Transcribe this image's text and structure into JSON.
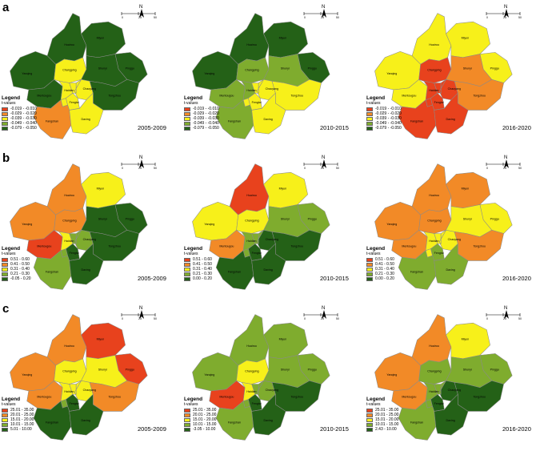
{
  "rows": [
    {
      "letter": "a",
      "legend_title": "Legend",
      "legend_subtitle": "t-values",
      "legend_items": [
        {
          "label": "-0.019 - -0.010",
          "color": "#e8421d"
        },
        {
          "label": "-0.029 - -0.020",
          "color": "#f28a27"
        },
        {
          "label": "-0.039 - -0.030",
          "color": "#f7f01a"
        },
        {
          "label": "-0.049 - -0.040",
          "color": "#7fac2e"
        },
        {
          "label": "-0.079 - -0.050",
          "color": "#246117"
        }
      ],
      "panels": [
        {
          "period": "2005-2009",
          "colors": {
            "Miyun": "#246117",
            "Yanqing": "#246117",
            "Huairou": "#246117",
            "Pinggu": "#246117",
            "Changping": "#f7f01a",
            "Shunyi": "#246117",
            "Tongzhou": "#246117",
            "Haidian": "#f7f01a",
            "Chaoyang": "#f7f01a",
            "Dongcheng": "#f7f01a",
            "Xicheng": "#f7f01a",
            "Shijingshan": "#f7f01a",
            "Fengtai": "#f7f01a",
            "Mentougou": "#246117",
            "Fangshan": "#f28a27",
            "Daxing": "#f7f01a"
          }
        },
        {
          "period": "2010-2015",
          "colors": {
            "Miyun": "#246117",
            "Yanqing": "#246117",
            "Huairou": "#246117",
            "Pinggu": "#246117",
            "Changping": "#7fac2e",
            "Shunyi": "#7fac2e",
            "Tongzhou": "#f7f01a",
            "Haidian": "#7fac2e",
            "Chaoyang": "#f7f01a",
            "Dongcheng": "#f7f01a",
            "Xicheng": "#f7f01a",
            "Shijingshan": "#f7f01a",
            "Fengtai": "#f7f01a",
            "Mentougou": "#7fac2e",
            "Fangshan": "#7fac2e",
            "Daxing": "#f7f01a"
          }
        },
        {
          "period": "2016-2020",
          "colors": {
            "Miyun": "#f7f01a",
            "Yanqing": "#f7f01a",
            "Huairou": "#f7f01a",
            "Pinggu": "#f7f01a",
            "Changping": "#e8421d",
            "Shunyi": "#f28a27",
            "Tongzhou": "#f28a27",
            "Haidian": "#e8421d",
            "Chaoyang": "#e8421d",
            "Dongcheng": "#e8421d",
            "Xicheng": "#e8421d",
            "Shijingshan": "#e8421d",
            "Fengtai": "#e8421d",
            "Mentougou": "#f7f01a",
            "Fangshan": "#e8421d",
            "Daxing": "#e8421d"
          }
        }
      ]
    },
    {
      "letter": "b",
      "legend_title": "Legend",
      "legend_subtitle": "t-values",
      "legend_items": [
        {
          "label": "0.51 - 0.60",
          "color": "#e8421d"
        },
        {
          "label": "0.41 - 0.50",
          "color": "#f28a27"
        },
        {
          "label": "0.31 - 0.40",
          "color": "#f7f01a"
        },
        {
          "label": "0.21 - 0.30",
          "color": "#7fac2e"
        }
      ],
      "panels": [
        {
          "period": "2005-2009",
          "last_label": "-0.05 - 0.20",
          "colors": {
            "Miyun": "#f7f01a",
            "Yanqing": "#f28a27",
            "Huairou": "#f28a27",
            "Pinggu": "#246117",
            "Changping": "#f28a27",
            "Shunyi": "#246117",
            "Tongzhou": "#246117",
            "Haidian": "#f7f01a",
            "Chaoyang": "#7fac2e",
            "Dongcheng": "#7fac2e",
            "Xicheng": "#7fac2e",
            "Shijingshan": "#7fac2e",
            "Fengtai": "#246117",
            "Mentougou": "#e8421d",
            "Fangshan": "#7fac2e",
            "Daxing": "#246117"
          }
        },
        {
          "period": "2010-2015",
          "last_label": "0.00 - 0.20",
          "colors": {
            "Miyun": "#f7f01a",
            "Yanqing": "#f7f01a",
            "Huairou": "#e8421d",
            "Pinggu": "#7fac2e",
            "Changping": "#f7f01a",
            "Shunyi": "#7fac2e",
            "Tongzhou": "#246117",
            "Haidian": "#7fac2e",
            "Chaoyang": "#246117",
            "Dongcheng": "#7fac2e",
            "Xicheng": "#7fac2e",
            "Shijingshan": "#7fac2e",
            "Fengtai": "#246117",
            "Mentougou": "#f28a27",
            "Fangshan": "#246117",
            "Daxing": "#246117"
          }
        },
        {
          "period": "2016-2020",
          "last_label": "0.00 - 0.20",
          "colors": {
            "Miyun": "#f28a27",
            "Yanqing": "#f28a27",
            "Huairou": "#f28a27",
            "Pinggu": "#f7f01a",
            "Changping": "#f28a27",
            "Shunyi": "#f7f01a",
            "Tongzhou": "#f28a27",
            "Haidian": "#f7f01a",
            "Chaoyang": "#f7f01a",
            "Dongcheng": "#f7f01a",
            "Xicheng": "#f7f01a",
            "Shijingshan": "#f7f01a",
            "Fengtai": "#7fac2e",
            "Mentougou": "#f28a27",
            "Fangshan": "#7fac2e",
            "Daxing": "#7fac2e"
          }
        }
      ],
      "last_color": "#246117"
    },
    {
      "letter": "c",
      "legend_title": "Legend",
      "legend_subtitle": "t-values",
      "legend_items": [
        {
          "label": "25.01 - 35.00",
          "color": "#e8421d"
        },
        {
          "label": "20.01 - 25.00",
          "color": "#f28a27"
        },
        {
          "label": "15.01 - 20.00",
          "color": "#f7f01a"
        },
        {
          "label": "10.01 - 15.00",
          "color": "#7fac2e"
        }
      ],
      "panels": [
        {
          "period": "2005-2009",
          "last_label": "5.01 - 10.00",
          "colors": {
            "Miyun": "#e8421d",
            "Yanqing": "#f28a27",
            "Huairou": "#f28a27",
            "Pinggu": "#e8421d",
            "Changping": "#f7f01a",
            "Shunyi": "#f7f01a",
            "Tongzhou": "#f28a27",
            "Haidian": "#f7f01a",
            "Chaoyang": "#f7f01a",
            "Dongcheng": "#f7f01a",
            "Xicheng": "#f7f01a",
            "Shijingshan": "#7fac2e",
            "Fengtai": "#246117",
            "Mentougou": "#f28a27",
            "Fangshan": "#246117",
            "Daxing": "#246117"
          }
        },
        {
          "period": "2010-2015",
          "last_label": "-3.05 - 10.00",
          "colors": {
            "Miyun": "#7fac2e",
            "Yanqing": "#7fac2e",
            "Huairou": "#7fac2e",
            "Pinggu": "#7fac2e",
            "Changping": "#f7f01a",
            "Shunyi": "#7fac2e",
            "Tongzhou": "#246117",
            "Haidian": "#f7f01a",
            "Chaoyang": "#7fac2e",
            "Dongcheng": "#7fac2e",
            "Xicheng": "#7fac2e",
            "Shijingshan": "#7fac2e",
            "Fengtai": "#246117",
            "Mentougou": "#e8421d",
            "Fangshan": "#7fac2e",
            "Daxing": "#246117"
          }
        },
        {
          "period": "2016-2020",
          "last_label": "2.43 - 10.00",
          "colors": {
            "Miyun": "#f7f01a",
            "Yanqing": "#f28a27",
            "Huairou": "#f28a27",
            "Pinggu": "#7fac2e",
            "Changping": "#7fac2e",
            "Shunyi": "#7fac2e",
            "Tongzhou": "#246117",
            "Haidian": "#7fac2e",
            "Chaoyang": "#246117",
            "Dongcheng": "#7fac2e",
            "Xicheng": "#7fac2e",
            "Shijingshan": "#7fac2e",
            "Fengtai": "#246117",
            "Mentougou": "#f28a27",
            "Fangshan": "#7fac2e",
            "Daxing": "#246117"
          }
        }
      ],
      "last_color": "#246117"
    }
  ],
  "district_labels": {
    "Miyun": "Miyun",
    "Yanqing": "Yanqing",
    "Huairou": "Huairou",
    "Pinggu": "Pinggu",
    "Changping": "Changping",
    "Shunyi": "Shunyi",
    "Tongzhou": "Tongzhou",
    "Haidian": "Haidian",
    "Chaoyang": "Chaoyang",
    "Dongcheng": "Dongcheng",
    "Xicheng": "Xicheng",
    "Shijingshan": "Shijingshan",
    "Fengtai": "Fengtai",
    "Mentougou": "Mentougou",
    "Fangshan": "Fangshan",
    "Daxing": "Daxing"
  },
  "map_labels": {
    "Miyun": "Miyun",
    "Yanqing": "Yanqing",
    "Huairou": "Huairou",
    "Pinggu": "Pinggu",
    "Changping": "Changping",
    "Shunyi": "Shunyi",
    "Tongzhou": "Tongzhou",
    "Haidian": "Haidian",
    "Chaoyang": "Chaoyang",
    "Fengtai": "Fengtai",
    "Mentougou": "Mentougou",
    "Fangshan": "Fangshan",
    "Daxing": "Daxing"
  },
  "label_text_map": {
    "Yanqing": "Yanqing",
    "Huairou": "Huairou",
    "Miyun": "Miyun",
    "Changping": "Changping",
    "Pinggu": "Pinggu",
    "Shunyi": "Shunyi"
  },
  "north_label": "N",
  "scale_labels": [
    "0",
    "25",
    "50"
  ]
}
